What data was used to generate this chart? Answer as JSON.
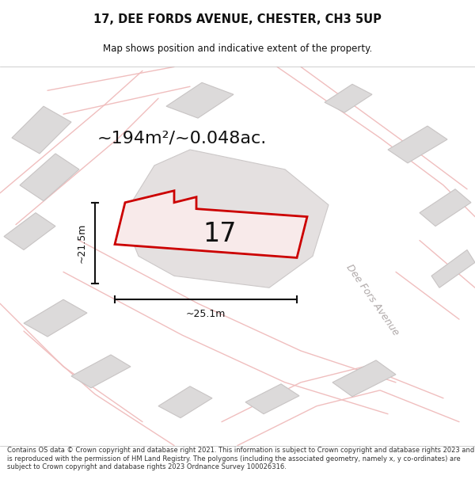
{
  "title": "17, DEE FORDS AVENUE, CHESTER, CH3 5UP",
  "subtitle": "Map shows position and indicative extent of the property.",
  "footer": "Contains OS data © Crown copyright and database right 2021. This information is subject to Crown copyright and database rights 2023 and is reproduced with the permission of HM Land Registry. The polygons (including the associated geometry, namely x, y co-ordinates) are subject to Crown copyright and database rights 2023 Ordnance Survey 100026316.",
  "area_label": "~194m²/~0.048ac.",
  "width_label": "~25.1m",
  "height_label": "~21.5m",
  "property_number": "17",
  "map_bg": "#eeecec",
  "road_color": "#f0bebe",
  "building_color": "#dcdada",
  "building_edge": "#c8c4c4",
  "highlight_color": "#cc0000",
  "highlight_fill": "#f8eaea",
  "dim_line_color": "#111111",
  "street_label_color": "#b0aaaa",
  "title_color": "#111111",
  "footer_color": "#333333"
}
